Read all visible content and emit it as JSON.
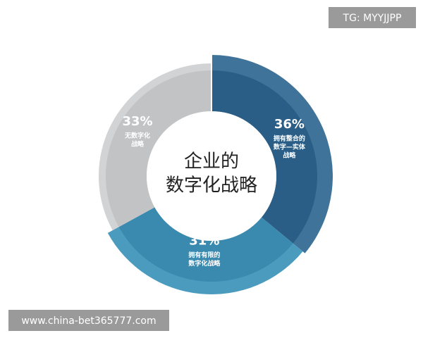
{
  "chart_data": {
    "type": "donut",
    "title": [
      "企业的",
      "数字化战略"
    ],
    "categories": [
      [
        "拥有整合的",
        "数字—实体",
        "战略"
      ],
      [
        "拥有有限的",
        "数字化战略"
      ],
      [
        "无数字化",
        "战略"
      ]
    ],
    "values": [
      36,
      31,
      33
    ],
    "value_labels": [
      "36%",
      "31%",
      "33%"
    ],
    "colors": [
      "#2b5e86",
      "#3a8ab0",
      "#c2c3c5"
    ],
    "outer_colors": [
      "#3f7399",
      "#4b9bbf",
      "#d2d3d5"
    ]
  },
  "watermarks": [
    "TG: MYYJJPP",
    "www.china-bet365777.com"
  ]
}
